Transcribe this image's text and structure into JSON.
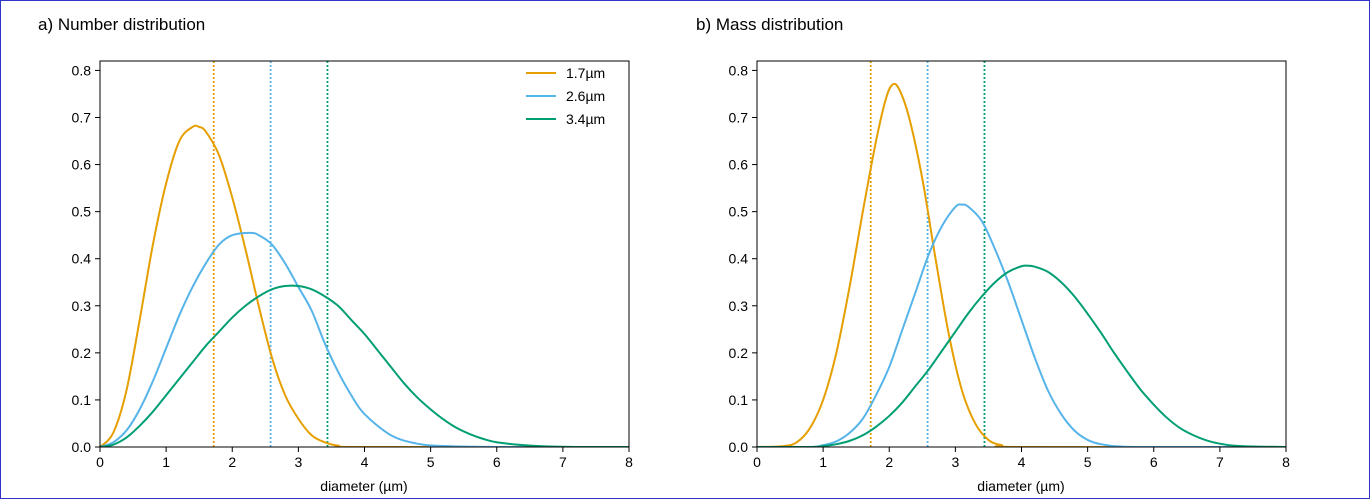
{
  "chart_data": [
    {
      "type": "line",
      "title": "a) Number distribution",
      "xlabel": "diameter (µm)",
      "ylabel": "",
      "xlim": [
        0,
        8
      ],
      "ylim": [
        0,
        0.82
      ],
      "xticks": [
        "0",
        "1",
        "2",
        "3",
        "4",
        "5",
        "6",
        "7",
        "8"
      ],
      "yticks": [
        "0.0",
        "0.1",
        "0.2",
        "0.3",
        "0.4",
        "0.5",
        "0.6",
        "0.7",
        "0.8"
      ],
      "grid": false,
      "legend": "top-right",
      "series": [
        {
          "name": "1.7µm",
          "color": "#E69F00",
          "peak_x": 1.5,
          "peak_y": 0.68,
          "vline_x": 1.72,
          "points": [
            [
              0,
              0
            ],
            [
              0.2,
              0.03
            ],
            [
              0.4,
              0.12
            ],
            [
              0.6,
              0.27
            ],
            [
              0.8,
              0.43
            ],
            [
              1.0,
              0.56
            ],
            [
              1.2,
              0.65
            ],
            [
              1.4,
              0.68
            ],
            [
              1.5,
              0.68
            ],
            [
              1.6,
              0.67
            ],
            [
              1.8,
              0.62
            ],
            [
              2.0,
              0.53
            ],
            [
              2.2,
              0.42
            ],
            [
              2.4,
              0.3
            ],
            [
              2.6,
              0.19
            ],
            [
              2.8,
              0.11
            ],
            [
              3.0,
              0.06
            ],
            [
              3.2,
              0.025
            ],
            [
              3.4,
              0.01
            ],
            [
              3.6,
              0.003
            ],
            [
              4.0,
              0
            ],
            [
              8,
              0
            ]
          ]
        },
        {
          "name": "2.6µm",
          "color": "#56B4E9",
          "peak_x": 2.27,
          "peak_y": 0.455,
          "vline_x": 2.58,
          "points": [
            [
              0,
              0
            ],
            [
              0.2,
              0.01
            ],
            [
              0.4,
              0.035
            ],
            [
              0.6,
              0.08
            ],
            [
              0.8,
              0.14
            ],
            [
              1.0,
              0.21
            ],
            [
              1.2,
              0.28
            ],
            [
              1.4,
              0.34
            ],
            [
              1.6,
              0.39
            ],
            [
              1.8,
              0.43
            ],
            [
              2.0,
              0.45
            ],
            [
              2.27,
              0.455
            ],
            [
              2.4,
              0.45
            ],
            [
              2.6,
              0.43
            ],
            [
              2.8,
              0.39
            ],
            [
              3.0,
              0.34
            ],
            [
              3.2,
              0.29
            ],
            [
              3.4,
              0.22
            ],
            [
              3.6,
              0.16
            ],
            [
              3.8,
              0.11
            ],
            [
              4.0,
              0.07
            ],
            [
              4.4,
              0.025
            ],
            [
              4.8,
              0.007
            ],
            [
              5.2,
              0.002
            ],
            [
              6.0,
              0
            ],
            [
              8,
              0
            ]
          ]
        },
        {
          "name": "3.4µm",
          "color": "#009E73",
          "peak_x": 3.0,
          "peak_y": 0.342,
          "vline_x": 3.44,
          "points": [
            [
              0,
              0
            ],
            [
              0.2,
              0.005
            ],
            [
              0.4,
              0.02
            ],
            [
              0.6,
              0.045
            ],
            [
              0.8,
              0.075
            ],
            [
              1.0,
              0.11
            ],
            [
              1.2,
              0.145
            ],
            [
              1.4,
              0.18
            ],
            [
              1.6,
              0.215
            ],
            [
              1.8,
              0.245
            ],
            [
              2.0,
              0.275
            ],
            [
              2.2,
              0.3
            ],
            [
              2.4,
              0.32
            ],
            [
              2.6,
              0.335
            ],
            [
              2.8,
              0.342
            ],
            [
              3.0,
              0.342
            ],
            [
              3.2,
              0.335
            ],
            [
              3.4,
              0.32
            ],
            [
              3.6,
              0.3
            ],
            [
              3.8,
              0.27
            ],
            [
              4.0,
              0.24
            ],
            [
              4.2,
              0.205
            ],
            [
              4.4,
              0.17
            ],
            [
              4.6,
              0.135
            ],
            [
              4.8,
              0.105
            ],
            [
              5.0,
              0.08
            ],
            [
              5.2,
              0.058
            ],
            [
              5.4,
              0.04
            ],
            [
              5.6,
              0.027
            ],
            [
              5.8,
              0.017
            ],
            [
              6.0,
              0.01
            ],
            [
              6.4,
              0.004
            ],
            [
              6.8,
              0.001
            ],
            [
              7.2,
              0
            ],
            [
              8,
              0
            ]
          ]
        }
      ]
    },
    {
      "type": "line",
      "title": "b) Mass distribution",
      "xlabel": "diameter (µm)",
      "ylabel": "",
      "xlim": [
        0,
        8
      ],
      "ylim": [
        0,
        0.82
      ],
      "xticks": [
        "0",
        "1",
        "2",
        "3",
        "4",
        "5",
        "6",
        "7",
        "8"
      ],
      "yticks": [
        "0.0",
        "0.1",
        "0.2",
        "0.3",
        "0.4",
        "0.5",
        "0.6",
        "0.7",
        "0.8"
      ],
      "grid": false,
      "legend": "none",
      "series": [
        {
          "name": "1.7µm",
          "color": "#E69F00",
          "peak_x": 2.05,
          "peak_y": 0.77,
          "vline_x": 1.72,
          "points": [
            [
              0,
              0
            ],
            [
              0.4,
              0.002
            ],
            [
              0.6,
              0.01
            ],
            [
              0.8,
              0.04
            ],
            [
              1.0,
              0.1
            ],
            [
              1.2,
              0.2
            ],
            [
              1.4,
              0.34
            ],
            [
              1.6,
              0.5
            ],
            [
              1.8,
              0.65
            ],
            [
              1.95,
              0.74
            ],
            [
              2.05,
              0.77
            ],
            [
              2.15,
              0.76
            ],
            [
              2.3,
              0.7
            ],
            [
              2.5,
              0.57
            ],
            [
              2.7,
              0.4
            ],
            [
              2.9,
              0.24
            ],
            [
              3.1,
              0.12
            ],
            [
              3.3,
              0.05
            ],
            [
              3.5,
              0.015
            ],
            [
              3.7,
              0.004
            ],
            [
              4.0,
              0
            ],
            [
              8,
              0
            ]
          ]
        },
        {
          "name": "2.6µm",
          "color": "#56B4E9",
          "peak_x": 3.05,
          "peak_y": 0.515,
          "vline_x": 2.58,
          "points": [
            [
              0,
              0
            ],
            [
              0.8,
              0
            ],
            [
              1.0,
              0.004
            ],
            [
              1.2,
              0.012
            ],
            [
              1.4,
              0.03
            ],
            [
              1.6,
              0.06
            ],
            [
              1.8,
              0.11
            ],
            [
              2.0,
              0.17
            ],
            [
              2.2,
              0.25
            ],
            [
              2.4,
              0.33
            ],
            [
              2.6,
              0.41
            ],
            [
              2.8,
              0.47
            ],
            [
              3.0,
              0.51
            ],
            [
              3.1,
              0.515
            ],
            [
              3.2,
              0.51
            ],
            [
              3.4,
              0.48
            ],
            [
              3.6,
              0.42
            ],
            [
              3.8,
              0.35
            ],
            [
              4.0,
              0.27
            ],
            [
              4.2,
              0.19
            ],
            [
              4.4,
              0.12
            ],
            [
              4.6,
              0.07
            ],
            [
              4.8,
              0.035
            ],
            [
              5.0,
              0.015
            ],
            [
              5.2,
              0.006
            ],
            [
              5.5,
              0.001
            ],
            [
              6.0,
              0
            ],
            [
              8,
              0
            ]
          ]
        },
        {
          "name": "3.4µm",
          "color": "#009E73",
          "peak_x": 4.08,
          "peak_y": 0.385,
          "vline_x": 3.44,
          "points": [
            [
              0,
              0
            ],
            [
              0.8,
              0
            ],
            [
              1.0,
              0.002
            ],
            [
              1.2,
              0.006
            ],
            [
              1.4,
              0.013
            ],
            [
              1.6,
              0.025
            ],
            [
              1.8,
              0.043
            ],
            [
              2.0,
              0.066
            ],
            [
              2.2,
              0.095
            ],
            [
              2.4,
              0.13
            ],
            [
              2.6,
              0.165
            ],
            [
              2.8,
              0.205
            ],
            [
              3.0,
              0.245
            ],
            [
              3.2,
              0.285
            ],
            [
              3.4,
              0.32
            ],
            [
              3.6,
              0.35
            ],
            [
              3.8,
              0.372
            ],
            [
              4.0,
              0.384
            ],
            [
              4.1,
              0.385
            ],
            [
              4.2,
              0.383
            ],
            [
              4.4,
              0.372
            ],
            [
              4.6,
              0.35
            ],
            [
              4.8,
              0.32
            ],
            [
              5.0,
              0.283
            ],
            [
              5.2,
              0.243
            ],
            [
              5.4,
              0.2
            ],
            [
              5.6,
              0.16
            ],
            [
              5.8,
              0.122
            ],
            [
              6.0,
              0.09
            ],
            [
              6.2,
              0.062
            ],
            [
              6.4,
              0.04
            ],
            [
              6.6,
              0.025
            ],
            [
              6.8,
              0.014
            ],
            [
              7.0,
              0.007
            ],
            [
              7.2,
              0.003
            ],
            [
              7.5,
              0.001
            ],
            [
              8,
              0
            ]
          ]
        }
      ]
    }
  ]
}
